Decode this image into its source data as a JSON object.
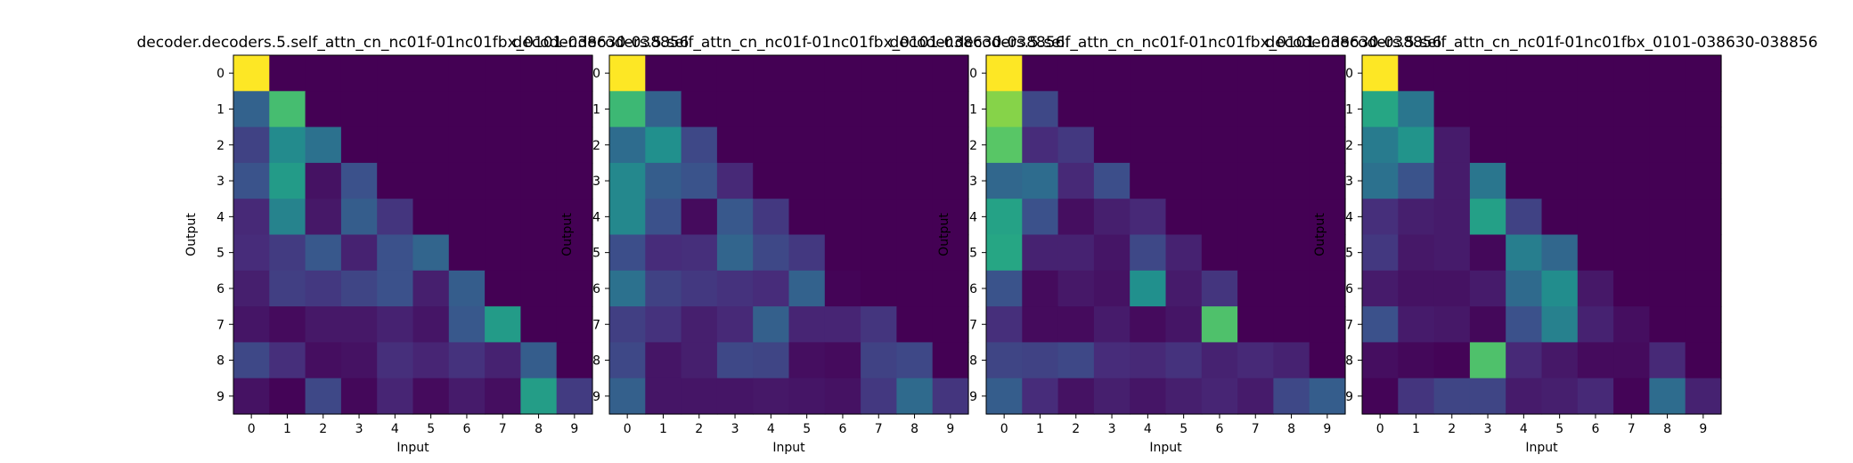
{
  "colormap": "viridis",
  "chart_data": [
    {
      "type": "heatmap",
      "title": "decoder.decoders.5.self_attn_cn_nc01f-01nc01fbx_0101-038630-038856",
      "xlabel": "Input",
      "ylabel": "Output",
      "x_ticks": [
        "0",
        "1",
        "2",
        "3",
        "4",
        "5",
        "6",
        "7",
        "8",
        "9"
      ],
      "y_ticks": [
        "0",
        "1",
        "2",
        "3",
        "4",
        "5",
        "6",
        "7",
        "8",
        "9"
      ],
      "value_range": [
        0,
        1
      ],
      "values": [
        [
          1.0,
          0,
          0,
          0,
          0,
          0,
          0,
          0,
          0,
          0
        ],
        [
          0.32,
          0.7,
          0,
          0,
          0,
          0,
          0,
          0,
          0,
          0
        ],
        [
          0.2,
          0.48,
          0.38,
          0,
          0,
          0,
          0,
          0,
          0,
          0
        ],
        [
          0.26,
          0.55,
          0.05,
          0.25,
          0,
          0,
          0,
          0,
          0,
          0
        ],
        [
          0.12,
          0.45,
          0.07,
          0.3,
          0.16,
          0,
          0,
          0,
          0,
          0
        ],
        [
          0.13,
          0.18,
          0.28,
          0.1,
          0.25,
          0.33,
          0,
          0,
          0,
          0
        ],
        [
          0.09,
          0.19,
          0.17,
          0.21,
          0.25,
          0.09,
          0.3,
          0,
          0,
          0
        ],
        [
          0.06,
          0.03,
          0.07,
          0.07,
          0.1,
          0.06,
          0.28,
          0.55,
          0,
          0
        ],
        [
          0.22,
          0.14,
          0.04,
          0.05,
          0.14,
          0.11,
          0.15,
          0.1,
          0.3,
          0
        ],
        [
          0.05,
          0.01,
          0.22,
          0.02,
          0.11,
          0.03,
          0.08,
          0.04,
          0.56,
          0.18
        ]
      ]
    },
    {
      "type": "heatmap",
      "title": "decoder.decoders.5.self_attn_cn_nc01f-01nc01fbx_0101-038630-038856",
      "xlabel": "Input",
      "ylabel": "Output",
      "x_ticks": [
        "0",
        "1",
        "2",
        "3",
        "4",
        "5",
        "6",
        "7",
        "8",
        "9"
      ],
      "y_ticks": [
        "0",
        "1",
        "2",
        "3",
        "4",
        "5",
        "6",
        "7",
        "8",
        "9"
      ],
      "value_range": [
        0,
        1
      ],
      "values": [
        [
          1.0,
          0,
          0,
          0,
          0,
          0,
          0,
          0,
          0,
          0
        ],
        [
          0.68,
          0.32,
          0,
          0,
          0,
          0,
          0,
          0,
          0,
          0
        ],
        [
          0.36,
          0.5,
          0.22,
          0,
          0,
          0,
          0,
          0,
          0,
          0
        ],
        [
          0.47,
          0.3,
          0.26,
          0.12,
          0,
          0,
          0,
          0,
          0,
          0
        ],
        [
          0.47,
          0.25,
          0.03,
          0.28,
          0.17,
          0,
          0,
          0,
          0,
          0
        ],
        [
          0.24,
          0.13,
          0.14,
          0.33,
          0.22,
          0.17,
          0,
          0,
          0,
          0
        ],
        [
          0.38,
          0.2,
          0.17,
          0.15,
          0.13,
          0.32,
          0.01,
          0,
          0,
          0
        ],
        [
          0.19,
          0.15,
          0.09,
          0.12,
          0.31,
          0.11,
          0.11,
          0.16,
          0,
          0
        ],
        [
          0.22,
          0.06,
          0.09,
          0.22,
          0.21,
          0.04,
          0.03,
          0.2,
          0.22,
          0
        ],
        [
          0.31,
          0.06,
          0.06,
          0.06,
          0.07,
          0.06,
          0.05,
          0.17,
          0.35,
          0.16
        ]
      ]
    },
    {
      "type": "heatmap",
      "title": "decoder.decoders.5.self_attn_cn_nc01f-01nc01fbx_0101-038630-038856",
      "xlabel": "Input",
      "ylabel": "Output",
      "x_ticks": [
        "0",
        "1",
        "2",
        "3",
        "4",
        "5",
        "6",
        "7",
        "8",
        "9"
      ],
      "y_ticks": [
        "0",
        "1",
        "2",
        "3",
        "4",
        "5",
        "6",
        "7",
        "8",
        "9"
      ],
      "value_range": [
        0,
        1
      ],
      "values": [
        [
          1.0,
          0,
          0,
          0,
          0,
          0,
          0,
          0,
          0,
          0
        ],
        [
          0.82,
          0.22,
          0,
          0,
          0,
          0,
          0,
          0,
          0,
          0
        ],
        [
          0.74,
          0.13,
          0.17,
          0,
          0,
          0,
          0,
          0,
          0,
          0
        ],
        [
          0.34,
          0.36,
          0.12,
          0.24,
          0,
          0,
          0,
          0,
          0,
          0
        ],
        [
          0.58,
          0.25,
          0.04,
          0.09,
          0.12,
          0,
          0,
          0,
          0,
          0
        ],
        [
          0.6,
          0.1,
          0.1,
          0.06,
          0.22,
          0.1,
          0,
          0,
          0,
          0
        ],
        [
          0.26,
          0.03,
          0.07,
          0.05,
          0.5,
          0.08,
          0.16,
          0,
          0,
          0
        ],
        [
          0.14,
          0.03,
          0.03,
          0.08,
          0.03,
          0.06,
          0.72,
          0,
          0,
          0
        ],
        [
          0.21,
          0.2,
          0.22,
          0.13,
          0.12,
          0.15,
          0.1,
          0.12,
          0.1,
          0
        ],
        [
          0.3,
          0.13,
          0.05,
          0.09,
          0.06,
          0.09,
          0.11,
          0.08,
          0.22,
          0.3
        ]
      ]
    },
    {
      "type": "heatmap",
      "title": "decoder.decoders.5.self_attn_cn_nc01f-01nc01fbx_0101-038630-038856",
      "xlabel": "Input",
      "ylabel": "Output",
      "x_ticks": [
        "0",
        "1",
        "2",
        "3",
        "4",
        "5",
        "6",
        "7",
        "8",
        "9"
      ],
      "y_ticks": [
        "0",
        "1",
        "2",
        "3",
        "4",
        "5",
        "6",
        "7",
        "8",
        "9"
      ],
      "value_range": [
        0,
        1
      ],
      "values": [
        [
          1.0,
          0,
          0,
          0,
          0,
          0,
          0,
          0,
          0,
          0
        ],
        [
          0.6,
          0.4,
          0,
          0,
          0,
          0,
          0,
          0,
          0,
          0
        ],
        [
          0.42,
          0.52,
          0.08,
          0,
          0,
          0,
          0,
          0,
          0,
          0
        ],
        [
          0.38,
          0.26,
          0.08,
          0.4,
          0,
          0,
          0,
          0,
          0,
          0
        ],
        [
          0.14,
          0.09,
          0.08,
          0.57,
          0.2,
          0,
          0,
          0,
          0,
          0
        ],
        [
          0.17,
          0.07,
          0.08,
          0.02,
          0.43,
          0.34,
          0,
          0,
          0,
          0
        ],
        [
          0.08,
          0.05,
          0.05,
          0.08,
          0.35,
          0.49,
          0.07,
          0,
          0,
          0
        ],
        [
          0.25,
          0.08,
          0.07,
          0.02,
          0.25,
          0.44,
          0.1,
          0.04,
          0,
          0
        ],
        [
          0.04,
          0.02,
          0.01,
          0.72,
          0.12,
          0.07,
          0.03,
          0.03,
          0.12,
          0
        ],
        [
          0.01,
          0.16,
          0.21,
          0.21,
          0.08,
          0.09,
          0.12,
          0.01,
          0.36,
          0.1
        ]
      ]
    }
  ]
}
